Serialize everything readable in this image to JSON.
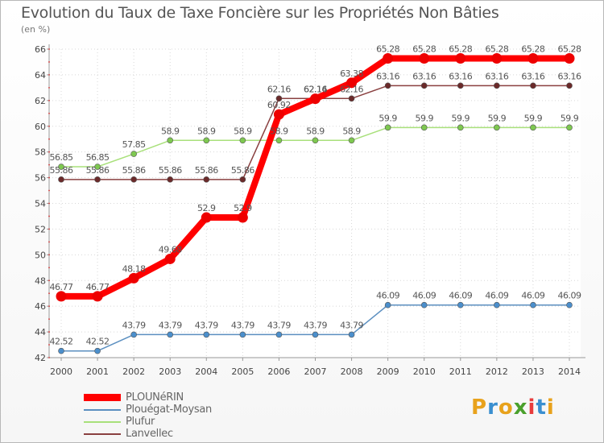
{
  "title": "Evolution du Taux de Taxe Foncière sur les Propriétés Non Bâties",
  "subtitle": "(en %)",
  "logo": {
    "text": "Proxiti",
    "letters": [
      "P",
      "r",
      "o",
      "x",
      "i",
      "t",
      "i"
    ],
    "colors": [
      "#e8a21c",
      "#3a8fd0",
      "#e8a21c",
      "#4aa02c",
      "#e83c3c",
      "#3a8fd0",
      "#e8a21c"
    ]
  },
  "chart_data": {
    "type": "line",
    "title": "Evolution du Taux de Taxe Foncière sur les Propriétés Non Bâties",
    "ylabel": "(en %)",
    "xlabel": "",
    "ylim": [
      42,
      66
    ],
    "yticks": [
      42,
      44,
      46,
      48,
      50,
      52,
      54,
      56,
      58,
      60,
      62,
      64,
      66
    ],
    "grid": true,
    "legend_position": "bottom-left",
    "categories": [
      "2000",
      "2001",
      "2002",
      "2003",
      "2004",
      "2005",
      "2006",
      "2007",
      "2008",
      "2009",
      "2010",
      "2011",
      "2012",
      "2013",
      "2014"
    ],
    "series": [
      {
        "name": "Plouégat-Moysan",
        "color": "#5b8fc0",
        "marker": "#4b8fcc",
        "width": 1.5,
        "r": 3.5,
        "values": [
          42.52,
          42.52,
          43.79,
          43.79,
          43.79,
          43.79,
          43.79,
          43.79,
          43.79,
          46.09,
          46.09,
          46.09,
          46.09,
          46.09,
          46.09
        ],
        "labels": [
          "42.52",
          "42.52",
          "43.79",
          "43.79",
          "43.79",
          "43.79",
          "43.79",
          "43.79",
          "43.79",
          "46.09",
          "46.09",
          "46.09",
          "46.09",
          "46.09",
          "46.09"
        ]
      },
      {
        "name": "Plufur",
        "color": "#a8e07a",
        "marker": "#7ec850",
        "width": 1.5,
        "r": 3.5,
        "values": [
          56.85,
          56.85,
          57.85,
          58.9,
          58.9,
          58.9,
          58.9,
          58.9,
          58.9,
          59.9,
          59.9,
          59.9,
          59.9,
          59.9,
          59.9
        ],
        "labels": [
          "56.85",
          "56.85",
          "57.85",
          "58.9",
          "58.9",
          "58.9",
          "58.9",
          "58.9",
          "58.9",
          "59.9",
          "59.9",
          "59.9",
          "59.9",
          "59.9",
          "59.9"
        ]
      },
      {
        "name": "Lanvellec",
        "color": "#8a4040",
        "marker": "#6b2a2a",
        "width": 1.5,
        "r": 3.5,
        "values": [
          55.86,
          55.86,
          55.86,
          55.86,
          55.86,
          55.86,
          62.16,
          62.16,
          62.16,
          63.16,
          63.16,
          63.16,
          63.16,
          63.16,
          63.16
        ],
        "labels": [
          "55.86",
          "55.86",
          "55.86",
          "55.86",
          "55.86",
          "55.86",
          "62.16",
          "62.16",
          "62.16",
          "63.16",
          "63.16",
          "63.16",
          "63.16",
          "63.16",
          "63.16"
        ]
      },
      {
        "name": "PLOUNéRIN",
        "color": "#ff0000",
        "marker": "#ee0000",
        "width": 8,
        "r": 6.5,
        "values": [
          46.77,
          46.77,
          48.18,
          49.68,
          52.9,
          52.9,
          60.92,
          62.14,
          63.38,
          65.28,
          65.28,
          65.28,
          65.28,
          65.28,
          65.28
        ],
        "labels": [
          "46.77",
          "46.77",
          "48.18",
          "49.68",
          "52.9",
          "52.9",
          "60.92",
          "62.14",
          "63.38",
          "65.28",
          "65.28",
          "65.28",
          "65.28",
          "65.28",
          "65.28"
        ]
      }
    ]
  },
  "legend": [
    {
      "label": "PLOUNéRIN",
      "color": "#ff0000",
      "thickness": 9
    },
    {
      "label": "Plouégat-Moysan",
      "color": "#5b8fc0",
      "thickness": 2
    },
    {
      "label": "Plufur",
      "color": "#a8e07a",
      "thickness": 2
    },
    {
      "label": "Lanvellec",
      "color": "#8a4040",
      "thickness": 2
    }
  ]
}
